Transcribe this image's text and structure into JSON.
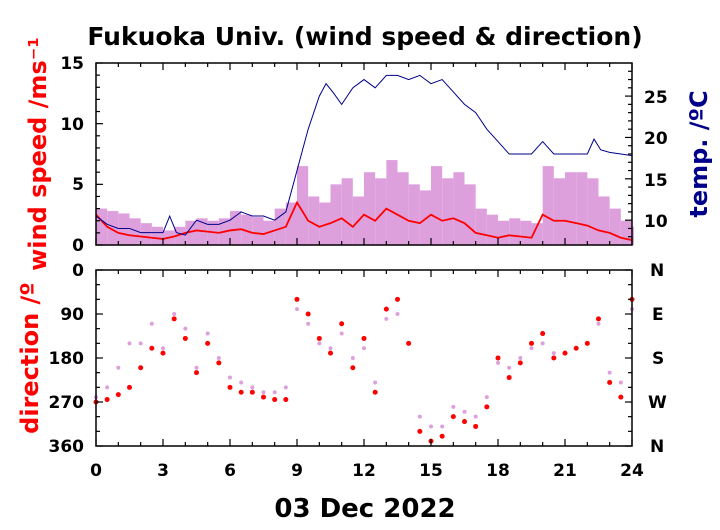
{
  "chart_data": [
    {
      "panel": "wind speed & temperature",
      "type": "line",
      "title": "Fukuoka Univ. (wind speed & direction)",
      "ylabel": "wind speed /ms⁻¹",
      "y2label": "temp. /ºC",
      "xlim": [
        0,
        24
      ],
      "ylim": [
        0,
        15
      ],
      "y2lim": [
        7,
        29
      ],
      "yticks": [
        "0",
        "5",
        "10",
        "15"
      ],
      "y2ticks": [
        "10",
        "15",
        "20",
        "25"
      ],
      "colors": {
        "wind_mean": "#ff0000",
        "wind_gust": "#dda0dd",
        "temperature": "#00008b"
      },
      "series": [
        {
          "key": "wind_mean",
          "x": [
            0,
            0.5,
            1,
            1.5,
            2,
            2.5,
            3,
            3.5,
            4,
            4.5,
            5,
            5.5,
            6,
            6.5,
            7,
            7.5,
            8,
            8.5,
            9,
            9.5,
            10,
            10.5,
            11,
            11.5,
            12,
            12.5,
            13,
            13.5,
            14,
            14.5,
            15,
            15.5,
            16,
            16.5,
            17,
            17.5,
            18,
            18.5,
            19,
            19.5,
            20,
            20.5,
            21,
            21.5,
            22,
            22.5,
            23,
            23.5,
            24
          ],
          "values": [
            2.5,
            1.5,
            1.0,
            0.8,
            0.7,
            0.6,
            0.5,
            0.7,
            1.0,
            1.2,
            1.1,
            1.0,
            1.2,
            1.3,
            1.0,
            0.9,
            1.2,
            1.5,
            3.5,
            2.0,
            1.5,
            1.8,
            2.2,
            1.5,
            2.5,
            2.0,
            3.0,
            2.5,
            2.0,
            1.8,
            2.5,
            2.0,
            2.2,
            1.8,
            1.0,
            0.8,
            0.6,
            0.8,
            0.7,
            0.6,
            2.5,
            2.0,
            2.0,
            1.8,
            1.6,
            1.2,
            1.0,
            0.6,
            0.4
          ]
        },
        {
          "key": "wind_gust",
          "x": [
            0,
            0.5,
            1,
            1.5,
            2,
            2.5,
            3,
            3.5,
            4,
            4.5,
            5,
            5.5,
            6,
            6.5,
            7,
            7.5,
            8,
            8.5,
            9,
            9.5,
            10,
            10.5,
            11,
            11.5,
            12,
            12.5,
            13,
            13.5,
            14,
            14.5,
            15,
            15.5,
            16,
            16.5,
            17,
            17.5,
            18,
            18.5,
            19,
            19.5,
            20,
            20.5,
            21,
            21.5,
            22,
            22.5,
            23,
            23.5,
            24
          ],
          "values": [
            3.0,
            2.8,
            2.6,
            2.2,
            1.8,
            1.5,
            1.2,
            1.5,
            2.0,
            2.2,
            2.0,
            2.2,
            2.8,
            2.5,
            2.3,
            2.0,
            3.0,
            3.5,
            6.5,
            4.0,
            3.5,
            5.0,
            5.5,
            4.0,
            6.0,
            5.5,
            7.0,
            6.0,
            5.0,
            4.5,
            6.5,
            5.5,
            6.0,
            5.0,
            3.0,
            2.5,
            2.0,
            2.2,
            2.0,
            1.8,
            6.5,
            5.5,
            6.0,
            6.0,
            5.5,
            4.0,
            3.0,
            2.0,
            1.5
          ]
        },
        {
          "key": "temperature",
          "axis": "right",
          "x": [
            0,
            0.5,
            1,
            1.5,
            2,
            2.5,
            3,
            3.3,
            3.6,
            4,
            4.5,
            5,
            5.5,
            6,
            6.5,
            7,
            7.5,
            8,
            8.5,
            9,
            9.5,
            10,
            10.3,
            10.6,
            11,
            11.5,
            12,
            12.5,
            13,
            13.5,
            14,
            14.5,
            15,
            15.5,
            16,
            16.5,
            17,
            17.5,
            18,
            18.5,
            19,
            19.5,
            20,
            20.5,
            21,
            21.5,
            22,
            22.3,
            22.6,
            23,
            23.5,
            24
          ],
          "values": [
            10.5,
            9.5,
            9.0,
            9.0,
            8.5,
            8.5,
            8.5,
            10.5,
            8.5,
            8.2,
            10.0,
            9.5,
            9.5,
            10.0,
            11.0,
            10.5,
            10.5,
            10.0,
            11.0,
            16.0,
            21.0,
            25.0,
            26.5,
            25.5,
            24.0,
            26.0,
            27.0,
            26.0,
            27.5,
            27.5,
            27.0,
            27.5,
            26.5,
            27.0,
            25.5,
            24.0,
            23.0,
            21.0,
            19.5,
            18.0,
            18.0,
            18.0,
            19.5,
            18.0,
            18.0,
            18.0,
            18.0,
            19.8,
            18.5,
            18.2,
            18.0,
            17.8
          ]
        }
      ]
    },
    {
      "panel": "wind direction",
      "type": "scatter",
      "ylabel": "direction /º",
      "xlabel": "03 Dec 2022",
      "xlim": [
        0,
        24
      ],
      "ylim": [
        0,
        360
      ],
      "xticks": [
        "0",
        "3",
        "6",
        "9",
        "12",
        "15",
        "18",
        "21",
        "24"
      ],
      "yticks": [
        "0",
        "90",
        "180",
        "270",
        "360"
      ],
      "y2ticks": [
        "N",
        "E",
        "S",
        "W",
        "N"
      ],
      "colors": {
        "mean_direction": "#ff0000",
        "instant_direction": "#dda0dd"
      },
      "series": [
        {
          "key": "mean_direction",
          "x": [
            0,
            0.5,
            1,
            1.5,
            2,
            2.5,
            3,
            3.5,
            4,
            4.5,
            5,
            5.5,
            6,
            6.5,
            7,
            7.5,
            8,
            8.5,
            9,
            9.5,
            10,
            10.5,
            11,
            11.5,
            12,
            12.5,
            13,
            13.5,
            14,
            14.5,
            15,
            15.5,
            16,
            16.5,
            17,
            17.5,
            18,
            18.5,
            19,
            19.5,
            20,
            20.5,
            21,
            21.5,
            22,
            22.5,
            23,
            23.5,
            24
          ],
          "values": [
            270,
            265,
            255,
            240,
            200,
            160,
            170,
            100,
            140,
            210,
            150,
            190,
            240,
            250,
            250,
            260,
            265,
            265,
            60,
            90,
            140,
            170,
            110,
            200,
            140,
            250,
            80,
            60,
            150,
            330,
            350,
            340,
            300,
            310,
            320,
            280,
            180,
            220,
            190,
            150,
            130,
            180,
            170,
            160,
            150,
            100,
            230,
            260,
            60
          ]
        },
        {
          "key": "instant_direction",
          "x": [
            0,
            0.5,
            1,
            1.5,
            2,
            2.5,
            3,
            3.5,
            4,
            4.5,
            5,
            5.5,
            6,
            6.5,
            7,
            7.5,
            8,
            8.5,
            9,
            9.5,
            10,
            10.5,
            11,
            11.5,
            12,
            12.5,
            13,
            13.5,
            14,
            14.5,
            15,
            15.5,
            16,
            16.5,
            17,
            17.5,
            18,
            18.5,
            19,
            19.5,
            20,
            20.5,
            21,
            21.5,
            22,
            22.5,
            23,
            23.5,
            24
          ],
          "values": [
            260,
            240,
            200,
            150,
            150,
            110,
            160,
            90,
            120,
            200,
            130,
            180,
            220,
            230,
            240,
            250,
            250,
            240,
            80,
            110,
            150,
            160,
            130,
            180,
            160,
            230,
            100,
            90,
            150,
            300,
            320,
            320,
            280,
            290,
            300,
            260,
            190,
            200,
            180,
            160,
            150,
            170,
            170,
            160,
            150,
            110,
            210,
            230,
            80
          ]
        }
      ]
    }
  ]
}
